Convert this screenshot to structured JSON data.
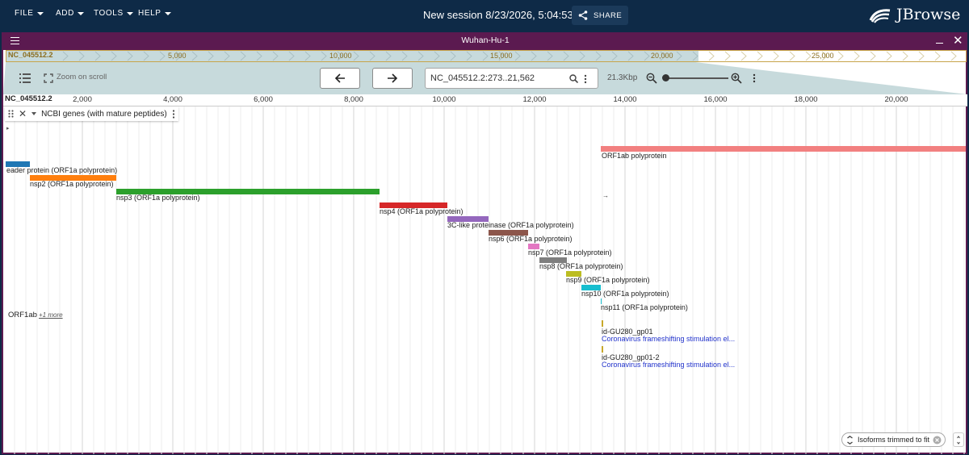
{
  "appbar": {
    "menus": [
      "FILE",
      "ADD",
      "TOOLS",
      "HELP"
    ],
    "session_title": "New session 8/23/2026, 5:04:53 PM",
    "share_label": "SHARE",
    "logo_text": "JBrowse"
  },
  "view": {
    "title": "Wuhan-Hu-1"
  },
  "overview": {
    "refname": "NC_045512.2",
    "ticks": [
      "5,000",
      "10,000",
      "15,000",
      "20,000",
      "25,000"
    ]
  },
  "controls": {
    "zoom_on_scroll_label": "Zoom on scroll",
    "location_value": "NC_045512.2:273..21,562",
    "bp_label": "21.3Kbp"
  },
  "ruler": {
    "refname": "NC_045512.2",
    "ticks": [
      "2,000",
      "4,000",
      "6,000",
      "8,000",
      "10,000",
      "12,000",
      "14,000",
      "16,000",
      "18,000",
      "20,000"
    ]
  },
  "track": {
    "name": "NCBI genes (with mature peptides)",
    "features": [
      {
        "label": "ORF1ab polyprotein",
        "color": "#f28080"
      },
      {
        "label": "eader protein (ORF1a polyprotein)",
        "color": "#1f77b4"
      },
      {
        "label": "nsp2 (ORF1a polyprotein)",
        "color": "#ff7f0e"
      },
      {
        "label": "nsp3 (ORF1a polyprotein)",
        "color": "#2ca02c"
      },
      {
        "label": "nsp4 (ORF1a polyprotein)",
        "color": "#d62728"
      },
      {
        "label": "3C-like proteinase (ORF1a polyprotein)",
        "color": "#9467bd"
      },
      {
        "label": "nsp6 (ORF1a polyprotein)",
        "color": "#8c564b"
      },
      {
        "label": "nsp7 (ORF1a polyprotein)",
        "color": "#e377c2"
      },
      {
        "label": "nsp8 (ORF1a polyprotein)",
        "color": "#7f7f7f"
      },
      {
        "label": "nsp9 (ORF1a polyprotein)",
        "color": "#bcbd22"
      },
      {
        "label": "nsp10 (ORF1a polyprotein)",
        "color": "#17becf"
      },
      {
        "label": "nsp11 (ORF1a polyprotein)",
        "color": "#17becf"
      }
    ],
    "gp01_label": "id-GU280_gp01",
    "gp01_desc": "Coronavirus frameshifting stimulation el...",
    "gp01_2_label": "id-GU280_gp01-2",
    "gp01_2_desc": "Coronavirus frameshifting stimulation el...",
    "collapsed_label": "ORF1ab",
    "more_label": "+1 more",
    "chip_label": "Isoforms trimmed to fit"
  }
}
